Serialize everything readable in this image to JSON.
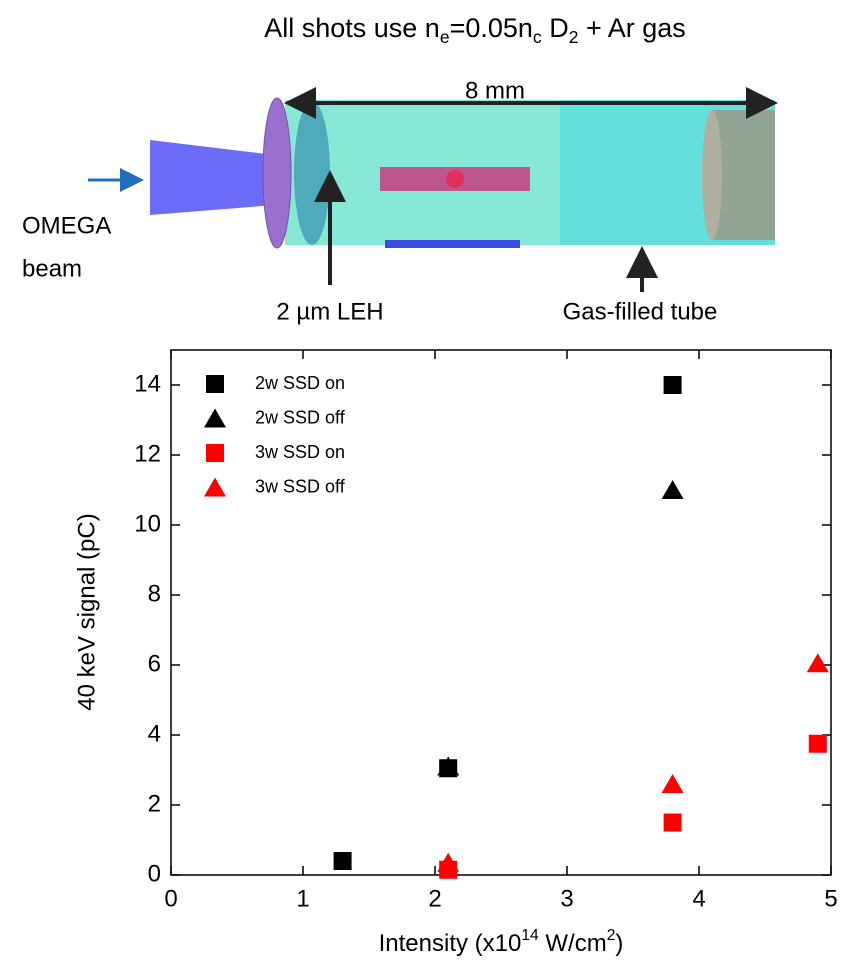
{
  "header": {
    "title": [
      "All shots use n",
      "e",
      "=0.05n",
      "c",
      " D",
      "2",
      " + Ar gas"
    ]
  },
  "diagram": {
    "length_label": "8 mm",
    "beam_label": [
      "OMEGA",
      "beam"
    ],
    "leh_label": "2 µm LEH",
    "tube_label": "Gas-filled tube"
  },
  "chart_data": {
    "type": "scatter",
    "x_label": [
      "Intensity (x10",
      "14",
      " W/cm",
      "2",
      ")"
    ],
    "y_label": "40 keV signal (pC)",
    "xlim": [
      0,
      5
    ],
    "xticks": [
      0,
      1,
      2,
      3,
      4,
      5
    ],
    "ylim": [
      0,
      15
    ],
    "yticks": [
      0,
      2,
      4,
      6,
      8,
      10,
      12,
      14
    ],
    "legend": "upper left",
    "series": [
      {
        "name": "2w SSD on",
        "color": "#000000",
        "marker": "square",
        "x": [
          1.3,
          2.1,
          3.8
        ],
        "values": [
          0.4,
          3.05,
          14
        ]
      },
      {
        "name": "2w SSD off",
        "color": "#000000",
        "marker": "triangle",
        "x": [
          2.1,
          3.8
        ],
        "values": [
          3.1,
          11
        ]
      },
      {
        "name": "3w SSD on",
        "color": "#ff0000",
        "marker": "square",
        "x": [
          2.1,
          3.8,
          4.9
        ],
        "values": [
          0.15,
          1.5,
          3.75
        ]
      },
      {
        "name": "3w SSD off",
        "color": "#ff0000",
        "marker": "triangle",
        "x": [
          2.1,
          3.8,
          4.9
        ],
        "values": [
          0.35,
          2.6,
          6.05
        ]
      }
    ]
  }
}
